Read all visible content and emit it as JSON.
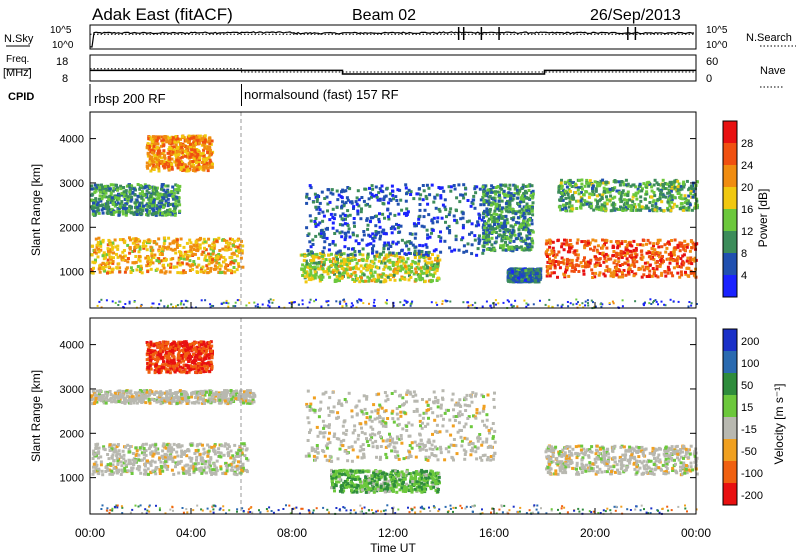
{
  "header": {
    "station": "Adak East (fitACF)",
    "beam": "Beam 02",
    "date": "26/Sep/2013"
  },
  "strips": {
    "nsky_label": "N.Sky",
    "nsearch_label": "N.Search",
    "freq_label_1": "Freq.",
    "freq_label_2": "[MHz]",
    "nave_label": "Nave",
    "cpid_label": "CPID",
    "noise_ticks": [
      "10^5",
      "10^0"
    ],
    "noise_ticks_right": [
      "10^5",
      "10^0"
    ],
    "freq_ticks": [
      "18",
      "8"
    ],
    "nave_ticks": [
      "60",
      "0"
    ],
    "cpid_segments": [
      {
        "start_hour": 0,
        "end_hour": 6,
        "label": "rbsp 200 RF"
      },
      {
        "start_hour": 6,
        "end_hour": 24,
        "label": "normalsound (fast) 157 RF"
      }
    ]
  },
  "axes": {
    "xlabel": "Time UT",
    "ylabel": "Slant Range [km]",
    "xticks": [
      "00:00",
      "04:00",
      "08:00",
      "12:00",
      "16:00",
      "20:00",
      "00:00"
    ],
    "yticks": [
      "1000",
      "2000",
      "3000",
      "4000"
    ]
  },
  "colorbars": {
    "power": {
      "label": "Power [dB]",
      "ticks": [
        "4",
        "8",
        "12",
        "16",
        "20",
        "24",
        "28"
      ],
      "colors": [
        "#1a22ff",
        "#2050b0",
        "#3c8c5a",
        "#6cc83c",
        "#f0c810",
        "#f08c10",
        "#f05010",
        "#e81010"
      ]
    },
    "velocity": {
      "label": "Velocity [m s⁻¹]",
      "ticks": [
        "200",
        "100",
        "50",
        "15",
        "-15",
        "-50",
        "-100",
        "-200"
      ],
      "colors": [
        "#1a30c8",
        "#2a6ab0",
        "#2e8c3c",
        "#6cc83c",
        "#b8b8b0",
        "#f0a020",
        "#f06010",
        "#e81010"
      ]
    }
  },
  "chart_data": [
    {
      "type": "line",
      "title": "N.Sky / N.Search",
      "x_range_hours": [
        0,
        24
      ],
      "series": [
        {
          "name": "N.Sky",
          "x": [
            0,
            0.1,
            2,
            4,
            6,
            8,
            10,
            12,
            14,
            16,
            18,
            20,
            22,
            24
          ],
          "values": [
            1,
            3000,
            3500,
            3200,
            4000,
            4500,
            3000,
            3300,
            3800,
            4200,
            4000,
            3600,
            3400,
            3200
          ]
        },
        {
          "name": "N.Search",
          "x": [
            0,
            24
          ],
          "values": [
            1500,
            1500
          ]
        }
      ]
    },
    {
      "type": "line",
      "title": "Freq. [MHz] / Nave",
      "series": [
        {
          "name": "Freq.",
          "x": [
            0,
            6,
            6,
            10,
            10,
            18,
            18,
            24
          ],
          "values": [
            12,
            12,
            12,
            12,
            10.5,
            10.5,
            12,
            12
          ]
        },
        {
          "name": "Nave",
          "x": [
            0,
            6,
            6,
            24
          ],
          "values": [
            28,
            28,
            20,
            20
          ]
        }
      ]
    },
    {
      "type": "heatmap",
      "title": "Power [dB]",
      "xlabel": "Time UT",
      "ylabel": "Slant Range [km]",
      "x_range_hours": [
        0,
        24
      ],
      "ylim": [
        180,
        4600
      ],
      "regions": [
        {
          "t0": 0,
          "t1": 6,
          "r0": 1000,
          "r1": 1800,
          "value": 20
        },
        {
          "t0": 2.2,
          "t1": 4.8,
          "r0": 3300,
          "r1": 4100,
          "value": 22
        },
        {
          "t0": 0,
          "t1": 3.5,
          "r0": 2300,
          "r1": 3000,
          "value": 10
        },
        {
          "t0": 8.3,
          "t1": 13.8,
          "r0": 800,
          "r1": 1450,
          "value": 16
        },
        {
          "t0": 8.5,
          "t1": 15.5,
          "r0": 1400,
          "r1": 3000,
          "value": 6
        },
        {
          "t0": 15.5,
          "t1": 17.5,
          "r0": 1500,
          "r1": 3000,
          "value": 10
        },
        {
          "t0": 16.5,
          "t1": 17.8,
          "r0": 800,
          "r1": 1100,
          "value": 8
        },
        {
          "t0": 18.0,
          "t1": 24,
          "r0": 900,
          "r1": 1750,
          "value": 26
        },
        {
          "t0": 18.5,
          "t1": 24,
          "r0": 2400,
          "r1": 3100,
          "value": 12
        }
      ]
    },
    {
      "type": "heatmap",
      "title": "Velocity [m s^-1]",
      "xlabel": "Time UT",
      "ylabel": "Slant Range [km]",
      "x_range_hours": [
        0,
        24
      ],
      "ylim": [
        180,
        4600
      ],
      "regions": [
        {
          "t0": 0,
          "t1": 6.2,
          "r0": 1100,
          "r1": 1800,
          "value": 0
        },
        {
          "t0": 0,
          "t1": 6.5,
          "r0": 2700,
          "r1": 3000,
          "value": 0
        },
        {
          "t0": 2.2,
          "t1": 4.8,
          "r0": 3400,
          "r1": 4100,
          "value": -100
        },
        {
          "t0": 9.5,
          "t1": 13.8,
          "r0": 700,
          "r1": 1200,
          "value": 30
        },
        {
          "t0": 8.5,
          "t1": 16,
          "r0": 1400,
          "r1": 3000,
          "value": 0
        },
        {
          "t0": 18.0,
          "t1": 24,
          "r0": 1100,
          "r1": 1750,
          "value": 0
        }
      ]
    }
  ]
}
